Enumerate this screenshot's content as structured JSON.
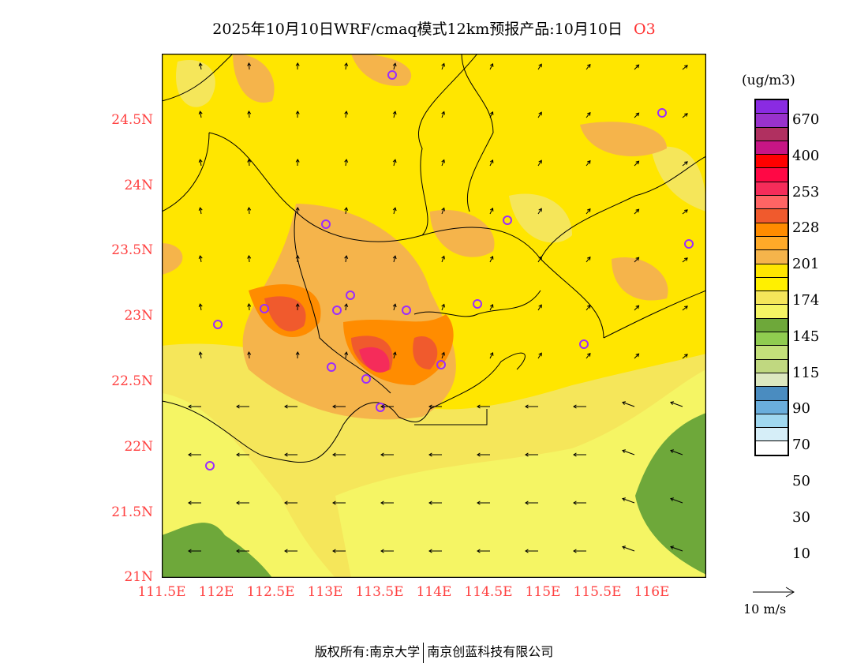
{
  "title": {
    "main": "2025年10月10日WRF/cmaq模式12km预报产品:10月10日",
    "species": "O3"
  },
  "axes": {
    "lat_ticks": [
      "24.5N",
      "24N",
      "23.5N",
      "23N",
      "22.5N",
      "22N",
      "21.5N",
      "21N"
    ],
    "lon_ticks": [
      "111.5E",
      "112E",
      "112.5E",
      "113E",
      "113.5E",
      "114E",
      "114.5E",
      "115E",
      "115.5E",
      "116E"
    ]
  },
  "legend": {
    "unit": "(ug/m3)",
    "colors": [
      "#8a2be2",
      "#9932cc",
      "#b03060",
      "#c71585",
      "#ff0000",
      "#ff0845",
      "#f52c5a",
      "#ff6464",
      "#f05a2d",
      "#ff8c00",
      "#ffaa28",
      "#f5b44b",
      "#ffe600",
      "#fff000",
      "#f5e65a",
      "#f5f564",
      "#6ea83a",
      "#90cc50",
      "#c4e07a",
      "#c0d880",
      "#dde8c0",
      "#4a8cc0",
      "#6aaedc",
      "#a0d8f0",
      "#d6eef8",
      "#ffffff"
    ],
    "labels": [
      "670",
      "400",
      "253",
      "228",
      "201",
      "174",
      "145",
      "115",
      "90",
      "70",
      "50",
      "30",
      "10"
    ]
  },
  "wind_scale": "10 m/s",
  "footer": {
    "left": "版权所有:南京大学",
    "right": "南京创蓝科技有限公司"
  }
}
